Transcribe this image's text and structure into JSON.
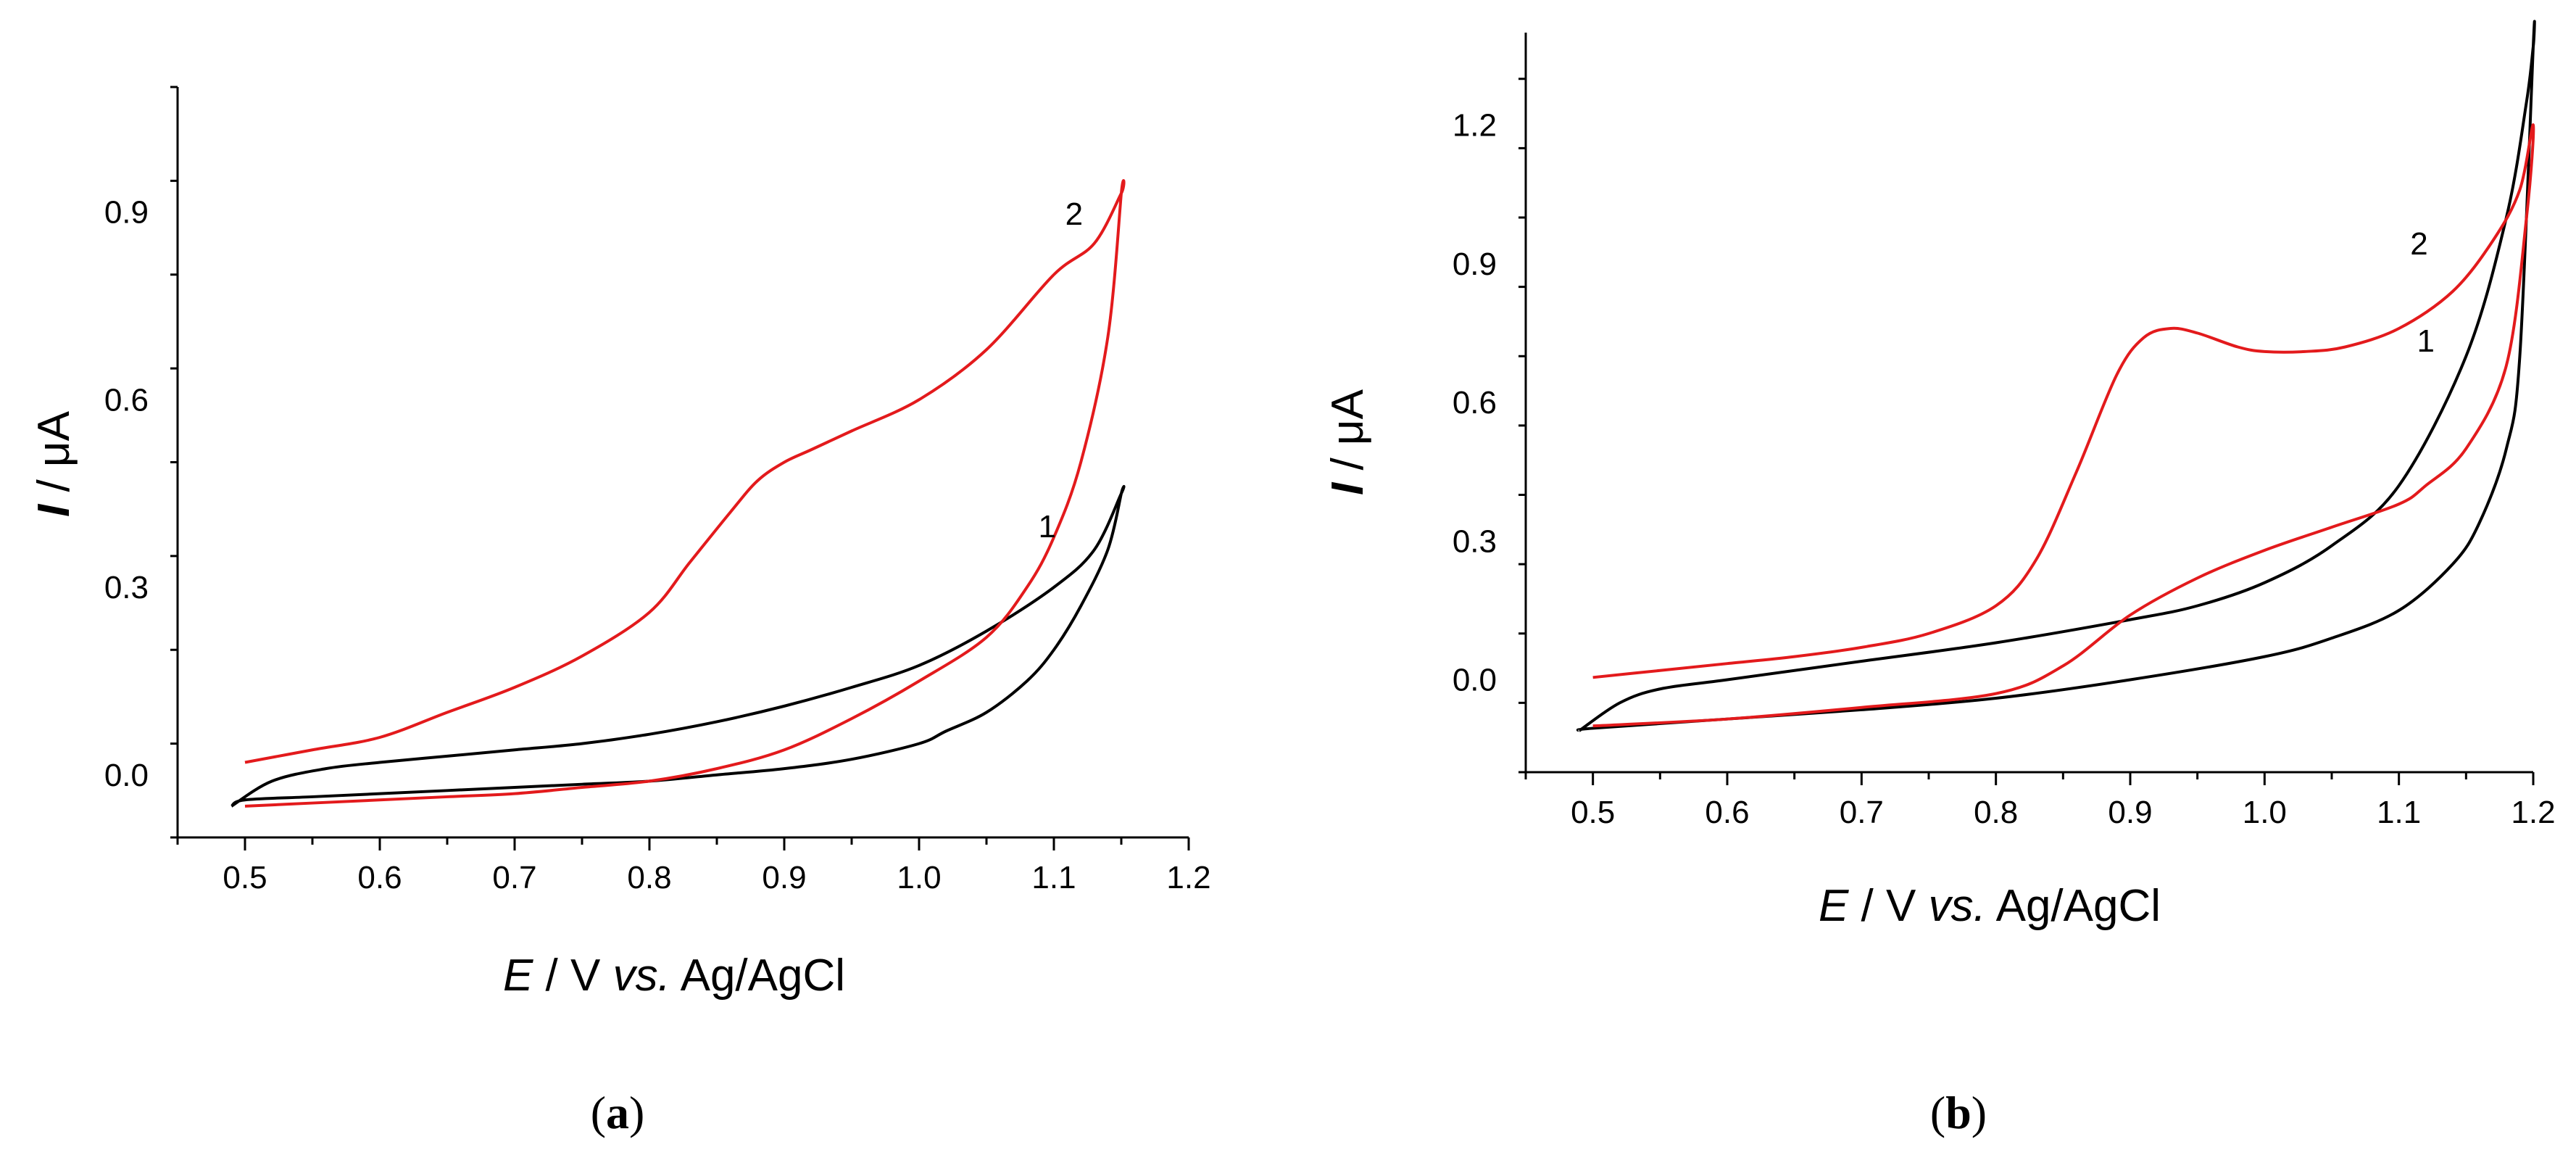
{
  "figure": {
    "panels": [
      {
        "caption_open": "(",
        "caption_letter": "a",
        "caption_close": ")"
      },
      {
        "caption_open": "(",
        "caption_letter": "b",
        "caption_close": ")"
      }
    ]
  },
  "chart_data": [
    {
      "type": "line",
      "panel": "a",
      "title": "",
      "xlabel": {
        "var": "E",
        "rest": " / V ",
        "vs": "vs.",
        "ref": " Ag/AgCl"
      },
      "ylabel": {
        "var": "I",
        "rest": " / μA"
      },
      "xlim": [
        0.45,
        1.2
      ],
      "ylim": [
        -0.1,
        1.1
      ],
      "xticks": [
        0.5,
        0.6,
        0.7,
        0.8,
        0.9,
        1.0,
        1.1,
        1.2
      ],
      "xtick_labels": [
        "0.5",
        "0.6",
        "0.7",
        "0.8",
        "0.9",
        "1.0",
        "1.1",
        "1.2"
      ],
      "yticks": [
        0.0,
        0.3,
        0.6,
        0.9
      ],
      "ytick_labels": [
        "0.0",
        "0.3",
        "0.6",
        "0.9"
      ],
      "series": [
        {
          "name": "1",
          "color": "#000000",
          "x": [
            0.49,
            0.52,
            0.56,
            0.6,
            0.65,
            0.7,
            0.75,
            0.8,
            0.85,
            0.9,
            0.95,
            1.0,
            1.05,
            1.1,
            1.13,
            1.15,
            1.15,
            1.14,
            1.12,
            1.1,
            1.08,
            1.05,
            1.02,
            1.0,
            0.95,
            0.9,
            0.85,
            0.8,
            0.75,
            0.7,
            0.65,
            0.6,
            0.55,
            0.5,
            0.49
          ],
          "y": [
            -0.05,
            -0.01,
            0.01,
            0.02,
            0.03,
            0.04,
            0.05,
            0.065,
            0.085,
            0.11,
            0.14,
            0.175,
            0.23,
            0.3,
            0.36,
            0.45,
            0.45,
            0.36,
            0.27,
            0.2,
            0.15,
            0.1,
            0.07,
            0.05,
            0.025,
            0.01,
            0.0,
            -0.01,
            -0.015,
            -0.02,
            -0.025,
            -0.03,
            -0.035,
            -0.04,
            -0.05
          ]
        },
        {
          "name": "2",
          "color": "#e31a1c",
          "x": [
            0.5,
            0.55,
            0.6,
            0.65,
            0.7,
            0.75,
            0.8,
            0.83,
            0.86,
            0.88,
            0.9,
            0.92,
            0.95,
            1.0,
            1.05,
            1.1,
            1.13,
            1.15,
            1.15,
            1.14,
            1.12,
            1.1,
            1.08,
            1.05,
            1.0,
            0.95,
            0.9,
            0.85,
            0.8,
            0.75,
            0.7,
            0.65,
            0.6,
            0.55,
            0.5
          ],
          "y": [
            0.02,
            0.04,
            0.06,
            0.1,
            0.14,
            0.19,
            0.26,
            0.34,
            0.42,
            0.47,
            0.5,
            0.52,
            0.55,
            0.6,
            0.68,
            0.8,
            0.85,
            0.93,
            0.93,
            0.7,
            0.5,
            0.38,
            0.3,
            0.22,
            0.15,
            0.09,
            0.04,
            0.01,
            -0.01,
            -0.02,
            -0.03,
            -0.035,
            -0.04,
            -0.045,
            -0.05
          ]
        }
      ],
      "annotations": [
        {
          "text": "1",
          "x": 1.095,
          "y": 0.38
        },
        {
          "text": "2",
          "x": 1.115,
          "y": 0.88
        }
      ]
    },
    {
      "type": "line",
      "panel": "b",
      "title": "",
      "xlabel": {
        "var": "E",
        "rest": " / V ",
        "vs": "vs.",
        "ref": " Ag/AgCl"
      },
      "ylabel": {
        "var": "I",
        "rest": " / μA"
      },
      "xlim": [
        0.45,
        1.2
      ],
      "ylim": [
        -0.2,
        1.4
      ],
      "xticks": [
        0.5,
        0.6,
        0.7,
        0.8,
        0.9,
        1.0,
        1.1,
        1.2
      ],
      "xtick_labels": [
        "0.5",
        "0.6",
        "0.7",
        "0.8",
        "0.9",
        "1.0",
        "1.1",
        "1.2"
      ],
      "yticks": [
        0.0,
        0.3,
        0.6,
        0.9,
        1.2
      ],
      "ytick_labels": [
        "0.0",
        "0.3",
        "0.6",
        "0.9",
        "1.2"
      ],
      "series": [
        {
          "name": "1",
          "color": "#000000",
          "x": [
            0.49,
            0.52,
            0.55,
            0.6,
            0.7,
            0.8,
            0.9,
            0.95,
            1.0,
            1.05,
            1.1,
            1.15,
            1.18,
            1.195,
            1.2,
            1.2,
            1.19,
            1.18,
            1.16,
            1.14,
            1.1,
            1.05,
            1.0,
            0.9,
            0.8,
            0.7,
            0.6,
            0.5,
            0.49
          ],
          "y": [
            -0.11,
            -0.05,
            -0.02,
            0.0,
            0.04,
            0.08,
            0.13,
            0.16,
            0.21,
            0.29,
            0.42,
            0.7,
            1.0,
            1.25,
            1.37,
            1.37,
            0.7,
            0.5,
            0.34,
            0.25,
            0.15,
            0.09,
            0.05,
            0.0,
            -0.04,
            -0.065,
            -0.085,
            -0.105,
            -0.11
          ]
        },
        {
          "name": "2",
          "color": "#e31a1c",
          "x": [
            0.5,
            0.55,
            0.6,
            0.65,
            0.7,
            0.75,
            0.8,
            0.83,
            0.86,
            0.89,
            0.91,
            0.93,
            0.95,
            0.98,
            1.0,
            1.03,
            1.06,
            1.1,
            1.14,
            1.17,
            1.19,
            1.2,
            1.195,
            1.18,
            1.15,
            1.12,
            1.1,
            1.05,
            1.0,
            0.95,
            0.9,
            0.85,
            0.8,
            0.7,
            0.6,
            0.5
          ],
          "y": [
            0.005,
            0.02,
            0.035,
            0.05,
            0.07,
            0.1,
            0.16,
            0.26,
            0.45,
            0.66,
            0.74,
            0.76,
            0.75,
            0.72,
            0.71,
            0.71,
            0.72,
            0.76,
            0.84,
            0.95,
            1.06,
            1.2,
            1.0,
            0.68,
            0.5,
            0.42,
            0.38,
            0.33,
            0.28,
            0.22,
            0.14,
            0.03,
            -0.03,
            -0.06,
            -0.085,
            -0.1
          ]
        }
      ],
      "annotations": [
        {
          "text": "1",
          "x": 1.12,
          "y": 0.71
        },
        {
          "text": "2",
          "x": 1.115,
          "y": 0.92
        }
      ]
    }
  ]
}
